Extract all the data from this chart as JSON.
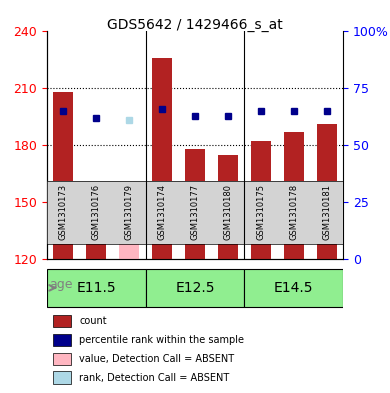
{
  "title": "GDS5642 / 1429466_s_at",
  "samples": [
    "GSM1310173",
    "GSM1310176",
    "GSM1310179",
    "GSM1310174",
    "GSM1310177",
    "GSM1310180",
    "GSM1310175",
    "GSM1310178",
    "GSM1310181"
  ],
  "counts": [
    208,
    144,
    158,
    226,
    178,
    175,
    182,
    187,
    191
  ],
  "ranks": [
    65,
    62,
    61,
    66,
    63,
    63,
    65,
    65,
    65
  ],
  "absent": [
    false,
    false,
    true,
    false,
    false,
    false,
    false,
    false,
    false
  ],
  "ylim_left": [
    120,
    240
  ],
  "ylim_right": [
    0,
    100
  ],
  "yticks_left": [
    120,
    150,
    180,
    210,
    240
  ],
  "yticks_right": [
    0,
    25,
    50,
    75,
    100
  ],
  "age_groups": [
    {
      "label": "E11.5",
      "start": 0,
      "end": 3
    },
    {
      "label": "E12.5",
      "start": 3,
      "end": 6
    },
    {
      "label": "E14.5",
      "start": 6,
      "end": 9
    }
  ],
  "bar_color_normal": "#b22222",
  "bar_color_absent": "#ffb6c1",
  "rank_color_normal": "#00008b",
  "rank_color_absent": "#add8e6",
  "bg_color": "#d3d3d3",
  "age_color": "#90ee90",
  "age_color_alt": "#c8f5c8",
  "dotted_line_color": "#000000",
  "bar_width": 0.6,
  "legend_items": [
    {
      "label": "count",
      "color": "#b22222",
      "type": "rect"
    },
    {
      "label": "percentile rank within the sample",
      "color": "#00008b",
      "type": "rect"
    },
    {
      "label": "value, Detection Call = ABSENT",
      "color": "#ffb6c1",
      "type": "rect"
    },
    {
      "label": "rank, Detection Call = ABSENT",
      "color": "#add8e6",
      "type": "rect"
    }
  ]
}
